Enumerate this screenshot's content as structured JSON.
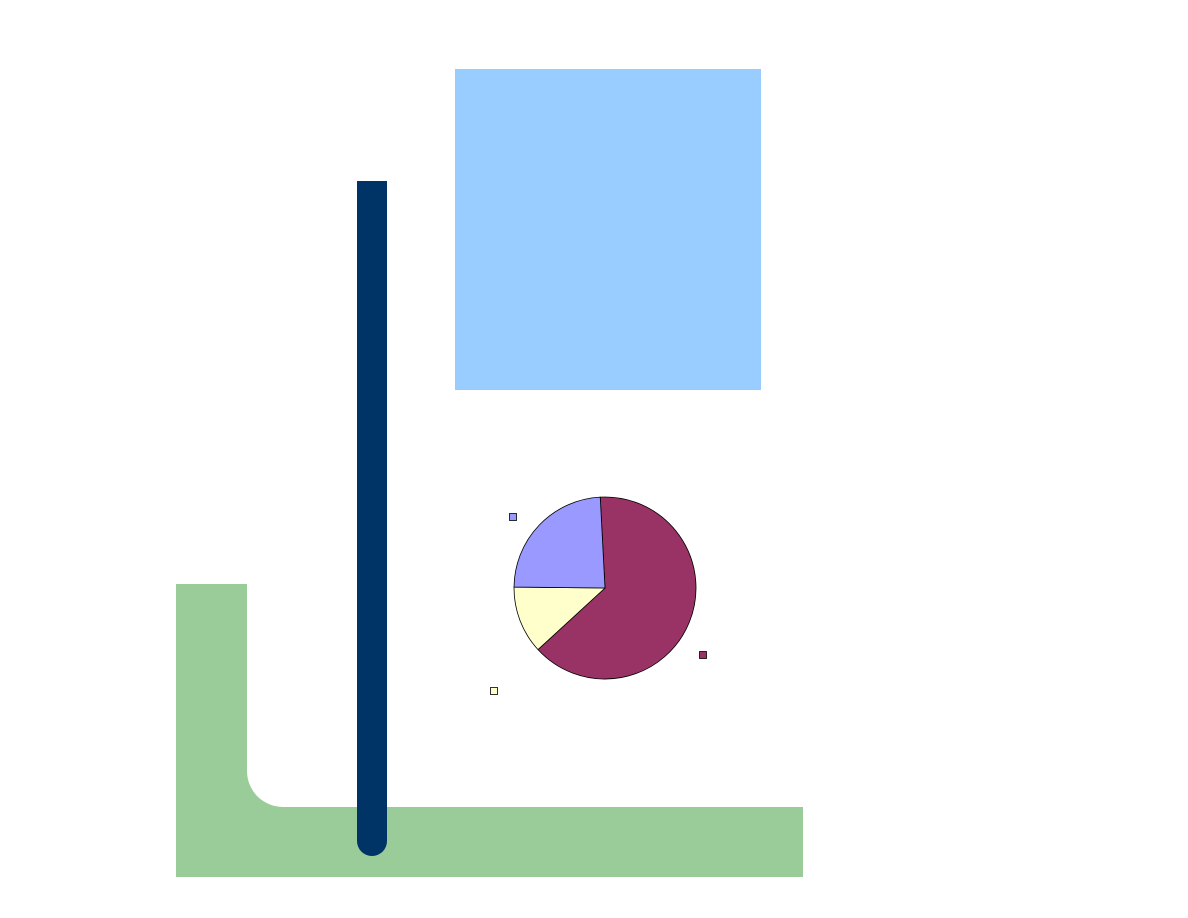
{
  "colors": {
    "background": "#ffffff",
    "green_l_shape": "#99cc99",
    "navy_bar": "#003366",
    "blue_block": "#99ccff"
  },
  "chart_data": {
    "type": "pie",
    "title": "",
    "slices": [
      {
        "label": "",
        "value": 64,
        "color": "#993366"
      },
      {
        "label": "",
        "value": 12,
        "color": "#ffffcc"
      },
      {
        "label": "",
        "value": 24,
        "color": "#9999ff"
      }
    ],
    "start_angle_deg": -3,
    "legend": "markers-only"
  }
}
